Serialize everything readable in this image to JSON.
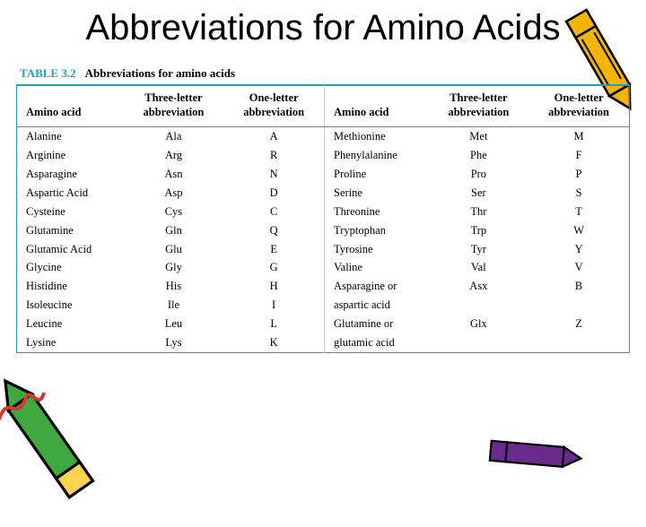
{
  "title": "Abbreviations for Amino Acids",
  "table": {
    "number": "TABLE 3.2",
    "caption": "Abbreviations for amino acids",
    "headers": {
      "aa": "Amino acid",
      "three_line1": "Three-letter",
      "three_line2": "abbreviation",
      "one_line1": "One-letter",
      "one_line2": "abbreviation"
    },
    "left_rows": [
      {
        "name": "Alanine",
        "three": "Ala",
        "one": "A"
      },
      {
        "name": "Arginine",
        "three": "Arg",
        "one": "R"
      },
      {
        "name": "Asparagine",
        "three": "Asn",
        "one": "N"
      },
      {
        "name": "Aspartic Acid",
        "three": "Asp",
        "one": "D"
      },
      {
        "name": "Cysteine",
        "three": "Cys",
        "one": "C"
      },
      {
        "name": "Glutamine",
        "three": "Gln",
        "one": "Q"
      },
      {
        "name": "Glutamic Acid",
        "three": "Glu",
        "one": "E"
      },
      {
        "name": "Glycine",
        "three": "Gly",
        "one": "G"
      },
      {
        "name": "Histidine",
        "three": "His",
        "one": "H"
      },
      {
        "name": "Isoleucine",
        "three": "Ile",
        "one": "I"
      },
      {
        "name": "Leucine",
        "three": "Leu",
        "one": "L"
      },
      {
        "name": "Lysine",
        "three": "Lys",
        "one": "K"
      }
    ],
    "right_rows": [
      {
        "name": "Methionine",
        "three": "Met",
        "one": "M"
      },
      {
        "name": "Phenylalanine",
        "three": "Phe",
        "one": "F"
      },
      {
        "name": "Proline",
        "three": "Pro",
        "one": "P"
      },
      {
        "name": "Serine",
        "three": "Ser",
        "one": "S"
      },
      {
        "name": "Threonine",
        "three": "Thr",
        "one": "T"
      },
      {
        "name": "Tryptophan",
        "three": "Trp",
        "one": "W"
      },
      {
        "name": "Tyrosine",
        "three": "Tyr",
        "one": "Y"
      },
      {
        "name": "Valine",
        "three": "Val",
        "one": "V"
      },
      {
        "name": "Asparagine or",
        "three": "Asx",
        "one": "B"
      },
      {
        "name": "aspartic acid",
        "three": "",
        "one": "",
        "sub": true
      },
      {
        "name": "Glutamine or",
        "three": "Glx",
        "one": "Z"
      },
      {
        "name": "glutamic acid",
        "three": "",
        "one": "",
        "sub": true
      }
    ]
  },
  "colors": {
    "accent": "#23a0b8",
    "crayon_yellow": "#f2b500",
    "crayon_purple": "#6a2a8c",
    "crayon_green": "#3fa83f",
    "crayon_red": "#d63a2a"
  }
}
